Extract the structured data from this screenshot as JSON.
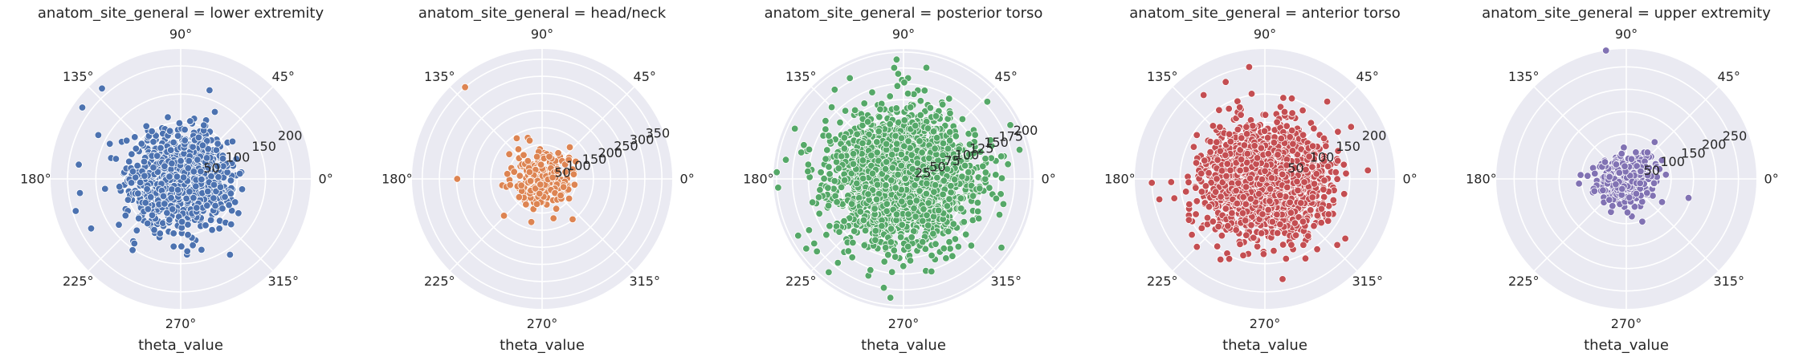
{
  "chart_data": [
    {
      "type": "scatter",
      "projection": "polar",
      "title": "anatom_site_general = lower extremity",
      "xlabel": "theta_value",
      "theta_ticks": [
        "0°",
        "45°",
        "90°",
        "135°",
        "180°",
        "225°",
        "270°",
        "315°"
      ],
      "r_ticks": [
        50,
        100,
        150,
        200
      ],
      "rlim": [
        0,
        230
      ],
      "color": "#4c72b0",
      "point_count": 1300,
      "radial_spread": 42,
      "outliers": [
        [
          144,
          215
        ],
        [
          152,
          165
        ],
        [
          131,
          212
        ],
        [
          172,
          182
        ],
        [
          188,
          180
        ],
        [
          197,
          194
        ],
        [
          209,
          181
        ],
        [
          236,
          152
        ],
        [
          318,
          120
        ],
        [
          303,
          160
        ],
        [
          72,
          165
        ],
        [
          63,
          133
        ]
      ]
    },
    {
      "type": "scatter",
      "projection": "polar",
      "title": "anatom_site_general = head/neck",
      "xlabel": "theta_value",
      "theta_ticks": [
        "0°",
        "45°",
        "90°",
        "135°",
        "180°",
        "225°",
        "270°",
        "315°"
      ],
      "r_ticks": [
        50,
        100,
        150,
        200,
        250,
        300,
        350
      ],
      "rlim": [
        0,
        380
      ],
      "color": "#dd8452",
      "point_count": 260,
      "radial_spread": 40,
      "outliers": [
        [
          130,
          350
        ],
        [
          180,
          248
        ],
        [
          224,
          155
        ],
        [
          256,
          130
        ],
        [
          307,
          148
        ],
        [
          122,
          140
        ],
        [
          143,
          120
        ],
        [
          108,
          118
        ]
      ]
    },
    {
      "type": "scatter",
      "projection": "polar",
      "title": "anatom_site_general = posterior torso",
      "xlabel": "theta_value",
      "theta_ticks": [
        "0°",
        "45°",
        "90°",
        "135°",
        "180°",
        "225°",
        "270°",
        "315°"
      ],
      "r_ticks": [
        25,
        50,
        75,
        100,
        125,
        150,
        175,
        200
      ],
      "rlim": [
        0,
        205
      ],
      "color": "#55a868",
      "point_count": 2100,
      "radial_spread": 55,
      "outliers": [
        [
          184,
          198
        ],
        [
          177,
          200
        ],
        [
          220,
          178
        ],
        [
          232,
          168
        ],
        [
          263,
          148
        ],
        [
          118,
          180
        ],
        [
          135,
          160
        ],
        [
          13,
          158
        ],
        [
          24,
          150
        ]
      ]
    },
    {
      "type": "scatter",
      "projection": "polar",
      "title": "anatom_site_general = anterior torso",
      "xlabel": "theta_value",
      "theta_ticks": [
        "0°",
        "45°",
        "90°",
        "135°",
        "180°",
        "225°",
        "270°",
        "315°"
      ],
      "r_ticks": [
        50,
        100,
        150,
        200
      ],
      "rlim": [
        0,
        230
      ],
      "color": "#c44e52",
      "point_count": 1700,
      "radial_spread": 52,
      "outliers": [
        [
          182,
          200
        ],
        [
          191,
          190
        ],
        [
          225,
          170
        ],
        [
          246,
          155
        ],
        [
          297,
          158
        ],
        [
          280,
          180
        ],
        [
          98,
          200
        ],
        [
          112,
          185
        ]
      ]
    },
    {
      "type": "scatter",
      "projection": "polar",
      "title": "anatom_site_general = upper extremity",
      "xlabel": "theta_value",
      "theta_ticks": [
        "0°",
        "45°",
        "90°",
        "135°",
        "180°",
        "225°",
        "270°",
        "315°"
      ],
      "r_ticks": [
        50,
        100,
        150,
        200,
        250
      ],
      "rlim": [
        0,
        290
      ],
      "color": "#8172b3",
      "point_count": 420,
      "radial_spread": 30,
      "outliers": [
        [
          99,
          290
        ],
        [
          343,
          145
        ],
        [
          327,
          95
        ],
        [
          272,
          75
        ],
        [
          243,
          68
        ],
        [
          206,
          58
        ]
      ]
    }
  ]
}
